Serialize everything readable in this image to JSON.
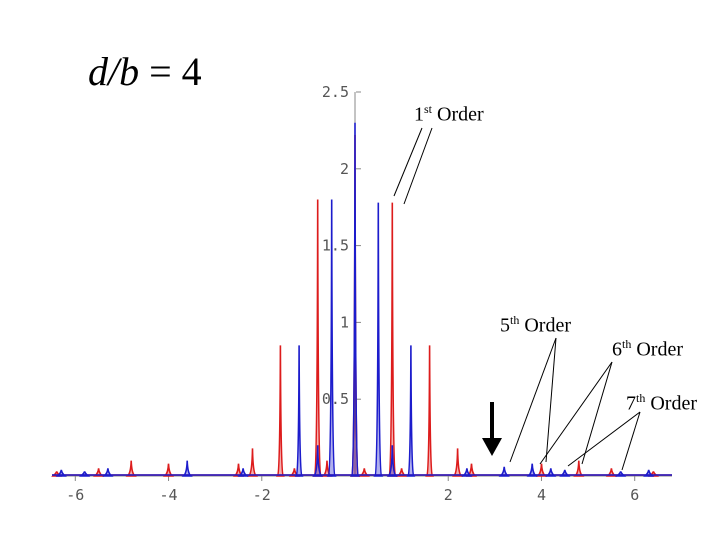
{
  "title": {
    "prefix": "d/b",
    "suffix": " = 4"
  },
  "annotations": [
    {
      "num": "1",
      "sup": "st",
      "word": " Order"
    },
    {
      "num": "5",
      "sup": "th",
      "word": " Order"
    },
    {
      "num": "6",
      "sup": "th",
      "word": " Order"
    },
    {
      "num": "7",
      "sup": "th",
      "word": " Order"
    }
  ],
  "chart_data": {
    "type": "line",
    "title": "",
    "xlabel": "",
    "ylabel": "",
    "xlim": [
      -6.5,
      6.8
    ],
    "ylim": [
      0,
      2.5
    ],
    "x_ticks": [
      -6,
      -4,
      -2,
      2,
      4,
      6
    ],
    "y_ticks": [
      0.5,
      1,
      1.5,
      2,
      2.5
    ],
    "y_tick_labels": [
      "0.5",
      "1",
      "1.5",
      "2",
      "2.5"
    ],
    "colors": {
      "red": "#dd1c1c",
      "blue": "#1c1ccc",
      "axis": "#888888"
    },
    "series": [
      {
        "color": "red",
        "peaks": [
          [
            -6.4,
            0.03
          ],
          [
            -5.5,
            0.05
          ],
          [
            -4.8,
            0.1
          ],
          [
            -4,
            0.08
          ],
          [
            -2.5,
            0.08
          ],
          [
            -2.2,
            0.18
          ],
          [
            -1.6,
            0.85
          ],
          [
            -1.3,
            0.05
          ],
          [
            -0.8,
            1.8
          ],
          [
            -0.6,
            0.1
          ],
          [
            0,
            2.22
          ],
          [
            0.2,
            0.05
          ],
          [
            0.8,
            1.78
          ],
          [
            1.0,
            0.05
          ],
          [
            1.6,
            0.85
          ],
          [
            2.2,
            0.18
          ],
          [
            2.5,
            0.08
          ],
          [
            4.0,
            0.08
          ],
          [
            4.8,
            0.1
          ],
          [
            5.5,
            0.05
          ],
          [
            6.4,
            0.03
          ]
        ]
      },
      {
        "color": "blue",
        "peaks": [
          [
            -6.3,
            0.04
          ],
          [
            -5.8,
            0.03
          ],
          [
            -5.3,
            0.05
          ],
          [
            -3.6,
            0.1
          ],
          [
            -2.4,
            0.05
          ],
          [
            -1.2,
            0.85
          ],
          [
            -0.8,
            0.2
          ],
          [
            -0.5,
            1.8
          ],
          [
            0,
            2.3
          ],
          [
            0.5,
            1.78
          ],
          [
            0.8,
            0.2
          ],
          [
            1.2,
            0.85
          ],
          [
            2.4,
            0.05
          ],
          [
            3.2,
            0.06
          ],
          [
            3.8,
            0.08
          ],
          [
            4.2,
            0.05
          ],
          [
            4.5,
            0.04
          ],
          [
            5.7,
            0.03
          ],
          [
            6.3,
            0.04
          ]
        ]
      }
    ]
  }
}
